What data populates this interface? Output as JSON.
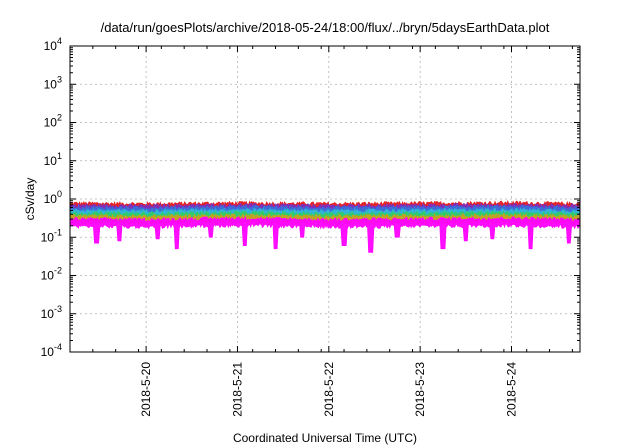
{
  "chart_data": {
    "type": "area",
    "title": "/data/run/goesPlots/archive/2018-05-24/18:00/flux/../bryn/5daysEarthData.plot",
    "xlabel": "Coordinated Universal Time (UTC)",
    "ylabel": "cSv/day",
    "y_scale": "log",
    "ylim": [
      0.0001,
      10000
    ],
    "y_ticks": [
      {
        "base": "10",
        "exp": "-4",
        "value": 0.0001
      },
      {
        "base": "10",
        "exp": "-3",
        "value": 0.001
      },
      {
        "base": "10",
        "exp": "-2",
        "value": 0.01
      },
      {
        "base": "10",
        "exp": "-1",
        "value": 0.1
      },
      {
        "base": "10",
        "exp": "0",
        "value": 1
      },
      {
        "base": "10",
        "exp": "1",
        "value": 10
      },
      {
        "base": "10",
        "exp": "2",
        "value": 100
      },
      {
        "base": "10",
        "exp": "3",
        "value": 1000
      },
      {
        "base": "10",
        "exp": "4",
        "value": 10000
      }
    ],
    "xlim": [
      "2018-05-19T04:00",
      "2018-05-24T18:00"
    ],
    "x_ticks": [
      "2018-5-20",
      "2018-5-21",
      "2018-5-22",
      "2018-5-23",
      "2018-5-24"
    ],
    "x_tick_values": [
      "2018-05-20T00:00",
      "2018-05-21T00:00",
      "2018-05-22T00:00",
      "2018-05-23T00:00",
      "2018-05-24T00:00"
    ],
    "grid": true,
    "series": [
      {
        "color": "#e41a1c",
        "base": 0.62,
        "x": [
          "2018-05-19T04:00",
          "2018-05-20T00:00",
          "2018-05-21T00:00",
          "2018-05-22T00:00",
          "2018-05-23T00:00",
          "2018-05-24T00:00",
          "2018-05-24T18:00"
        ],
        "values": [
          0.62,
          0.6,
          0.63,
          0.6,
          0.62,
          0.64,
          0.6
        ]
      },
      {
        "color": "#7b2fbf",
        "base": 0.55,
        "x": [
          "2018-05-19T04:00",
          "2018-05-20T00:00",
          "2018-05-21T00:00",
          "2018-05-22T00:00",
          "2018-05-23T00:00",
          "2018-05-24T00:00",
          "2018-05-24T18:00"
        ],
        "values": [
          0.55,
          0.53,
          0.56,
          0.53,
          0.55,
          0.56,
          0.53
        ]
      },
      {
        "color": "#3a6fd8",
        "base": 0.48,
        "x": [
          "2018-05-19T04:00",
          "2018-05-20T00:00",
          "2018-05-21T00:00",
          "2018-05-22T00:00",
          "2018-05-23T00:00",
          "2018-05-24T00:00",
          "2018-05-24T18:00"
        ],
        "values": [
          0.48,
          0.46,
          0.5,
          0.46,
          0.48,
          0.5,
          0.47
        ]
      },
      {
        "color": "#2fb8d8",
        "base": 0.4,
        "x": [
          "2018-05-19T04:00",
          "2018-05-20T00:00",
          "2018-05-21T00:00",
          "2018-05-22T00:00",
          "2018-05-23T00:00",
          "2018-05-24T00:00",
          "2018-05-24T18:00"
        ],
        "values": [
          0.4,
          0.39,
          0.42,
          0.39,
          0.4,
          0.42,
          0.39
        ]
      },
      {
        "color": "#33cc66",
        "base": 0.34,
        "x": [
          "2018-05-19T04:00",
          "2018-05-20T00:00",
          "2018-05-21T00:00",
          "2018-05-22T00:00",
          "2018-05-23T00:00",
          "2018-05-24T00:00",
          "2018-05-24T18:00"
        ],
        "values": [
          0.34,
          0.33,
          0.35,
          0.33,
          0.34,
          0.35,
          0.33
        ]
      },
      {
        "color": "#c8a020",
        "base": 0.29,
        "x": [
          "2018-05-19T04:00",
          "2018-05-20T00:00",
          "2018-05-21T00:00",
          "2018-05-22T00:00",
          "2018-05-23T00:00",
          "2018-05-24T00:00",
          "2018-05-24T18:00"
        ],
        "values": [
          0.29,
          0.28,
          0.3,
          0.28,
          0.29,
          0.3,
          0.28
        ]
      },
      {
        "color": "#ff00ff",
        "base": 0.24,
        "x": [
          "2018-05-19T04:00",
          "2018-05-20T00:00",
          "2018-05-21T00:00",
          "2018-05-22T00:00",
          "2018-05-23T00:00",
          "2018-05-24T00:00",
          "2018-05-24T18:00"
        ],
        "values": [
          0.24,
          0.23,
          0.25,
          0.23,
          0.24,
          0.25,
          0.23
        ],
        "dips": [
          {
            "x": "2018-05-19T11:00",
            "value": 0.07
          },
          {
            "x": "2018-05-19T17:00",
            "value": 0.08
          },
          {
            "x": "2018-05-20T03:00",
            "value": 0.09
          },
          {
            "x": "2018-05-20T08:00",
            "value": 0.05
          },
          {
            "x": "2018-05-20T17:00",
            "value": 0.1
          },
          {
            "x": "2018-05-21T02:00",
            "value": 0.06
          },
          {
            "x": "2018-05-21T10:00",
            "value": 0.05
          },
          {
            "x": "2018-05-21T17:00",
            "value": 0.1
          },
          {
            "x": "2018-05-22T04:00",
            "value": 0.06
          },
          {
            "x": "2018-05-22T11:00",
            "value": 0.04
          },
          {
            "x": "2018-05-22T18:00",
            "value": 0.1
          },
          {
            "x": "2018-05-23T06:00",
            "value": 0.05
          },
          {
            "x": "2018-05-23T12:00",
            "value": 0.08
          },
          {
            "x": "2018-05-23T19:00",
            "value": 0.09
          },
          {
            "x": "2018-05-24T05:00",
            "value": 0.05
          },
          {
            "x": "2018-05-24T15:00",
            "value": 0.07
          }
        ]
      }
    ]
  }
}
